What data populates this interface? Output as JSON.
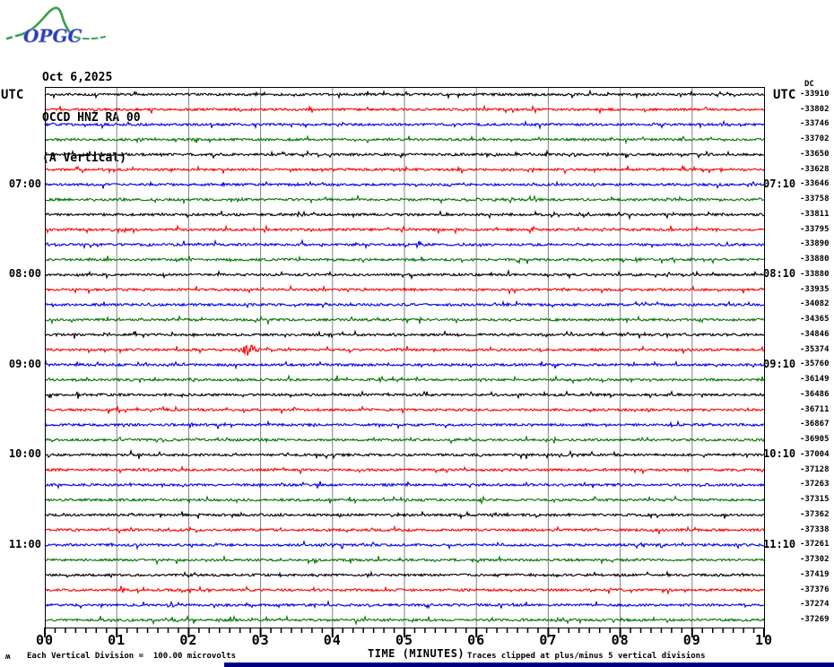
{
  "logo": {
    "text": "OPGC",
    "text_color": "#2d3db5",
    "curve_color": "#36a04a"
  },
  "header": {
    "date": "Oct 6,2025",
    "station": "OCCD HNZ RA 00",
    "component": "(A Vertical)"
  },
  "axis_labels": {
    "left_title": "UTC",
    "right_title": "UTC",
    "dc_label": "DC",
    "x_title": "TIME (MINUTES)"
  },
  "footer": {
    "wiggle_glyph": "ʍ",
    "scale_note": "Each Vertical Division =  100.00 microvolts",
    "clip_note": "Traces clipped at plus/minus 5 vertical divisions"
  },
  "chart_data": {
    "type": "line",
    "subtype": "helicorder-seismogram",
    "title": "OCCD HNZ RA 00 (A Vertical) — Oct 6,2025",
    "x_unit": "minutes",
    "x_range": [
      0,
      10
    ],
    "x_ticks": [
      "00",
      "01",
      "02",
      "03",
      "04",
      "05",
      "06",
      "07",
      "08",
      "09",
      "10"
    ],
    "minutes_per_row": 10,
    "start_time_utc": "06:00",
    "end_time_utc": "12:00",
    "grid": true,
    "grid_color": "#808080",
    "row_colors_cycle": [
      "#000000",
      "#ff0000",
      "#0000ee",
      "#007700"
    ],
    "rows": [
      {
        "start": "06:00",
        "dc": -33910
      },
      {
        "start": "06:10",
        "dc": -33802
      },
      {
        "start": "06:20",
        "dc": -33746
      },
      {
        "start": "06:30",
        "dc": -33702
      },
      {
        "start": "06:40",
        "dc": -33650
      },
      {
        "start": "06:50",
        "dc": -33628
      },
      {
        "start": "07:00",
        "dc": -33646
      },
      {
        "start": "07:10",
        "dc": -33758
      },
      {
        "start": "07:20",
        "dc": -33811
      },
      {
        "start": "07:30",
        "dc": -33795
      },
      {
        "start": "07:40",
        "dc": -33890
      },
      {
        "start": "07:50",
        "dc": -33880
      },
      {
        "start": "08:00",
        "dc": -33880
      },
      {
        "start": "08:10",
        "dc": -33935
      },
      {
        "start": "08:20",
        "dc": -34082
      },
      {
        "start": "08:30",
        "dc": -34365
      },
      {
        "start": "08:40",
        "dc": -34846
      },
      {
        "start": "08:50",
        "dc": -35374
      },
      {
        "start": "09:00",
        "dc": -35760
      },
      {
        "start": "09:10",
        "dc": -36149
      },
      {
        "start": "09:20",
        "dc": -36486
      },
      {
        "start": "09:30",
        "dc": -36711
      },
      {
        "start": "09:40",
        "dc": -36867
      },
      {
        "start": "09:50",
        "dc": -36905
      },
      {
        "start": "10:00",
        "dc": -37004
      },
      {
        "start": "10:10",
        "dc": -37128
      },
      {
        "start": "10:20",
        "dc": -37263
      },
      {
        "start": "10:30",
        "dc": -37315
      },
      {
        "start": "10:40",
        "dc": -37362
      },
      {
        "start": "10:50",
        "dc": -37338
      },
      {
        "start": "11:00",
        "dc": -37261
      },
      {
        "start": "11:10",
        "dc": -37302
      },
      {
        "start": "11:20",
        "dc": -37419
      },
      {
        "start": "11:30",
        "dc": -37376
      },
      {
        "start": "11:40",
        "dc": -37274
      },
      {
        "start": "11:50",
        "dc": -37269
      }
    ],
    "hour_label_rows": [
      {
        "index": 6,
        "left": "07:00",
        "right": "07:10"
      },
      {
        "index": 12,
        "left": "08:00",
        "right": "08:10"
      },
      {
        "index": 18,
        "left": "09:00",
        "right": "09:10"
      },
      {
        "index": 24,
        "left": "10:00",
        "right": "10:10"
      },
      {
        "index": 30,
        "left": "11:00",
        "right": "11:10"
      }
    ],
    "event": {
      "row_index": 17,
      "minute": 2.83,
      "description": "small transient burst on 08:50 UTC row"
    }
  }
}
